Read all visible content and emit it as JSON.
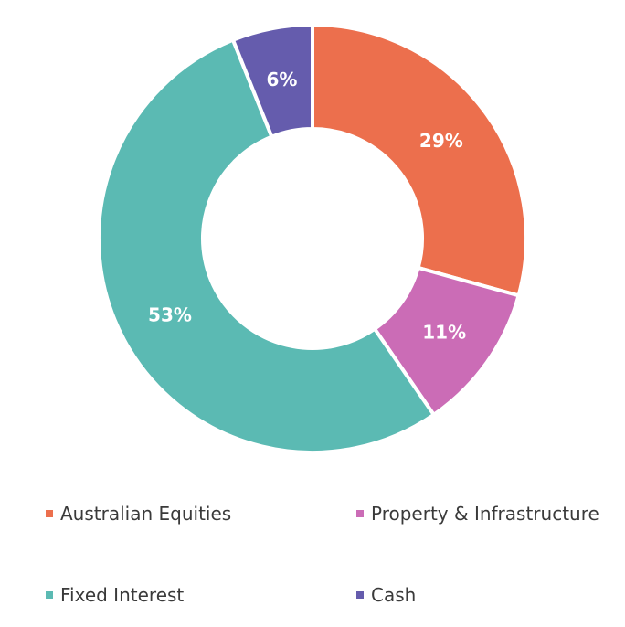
{
  "chart_data": {
    "type": "pie",
    "variant": "donut",
    "categories": [
      "Australian Equities",
      "Property & Infrastructure",
      "Fixed Interest",
      "Cash"
    ],
    "values": [
      29,
      11,
      53,
      6
    ],
    "value_labels": [
      "29%",
      "11%",
      "53%",
      "6%"
    ],
    "colors": [
      "#ec6f4d",
      "#cb6cb6",
      "#5bbab3",
      "#655cad"
    ],
    "legend_position": "bottom",
    "title": ""
  },
  "legend": {
    "items": [
      {
        "label": "Australian Equities",
        "color": "#ec6f4d"
      },
      {
        "label": "Property & Infrastructure",
        "color": "#cb6cb6"
      },
      {
        "label": "Fixed Interest",
        "color": "#5bbab3"
      },
      {
        "label": "Cash",
        "color": "#655cad"
      }
    ]
  }
}
